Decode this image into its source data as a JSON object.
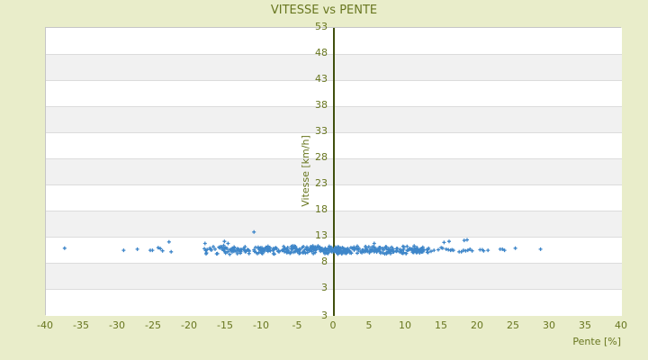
{
  "chart_data": {
    "type": "scatter",
    "title": "VITESSE vs PENTE",
    "xlabel": "Pente [%]",
    "ylabel": "Vitesse [km/h]",
    "xlim": [
      -40,
      40
    ],
    "ylim": [
      -2,
      53
    ],
    "x_ticks": [
      -40,
      -35,
      -30,
      -25,
      -20,
      -15,
      -10,
      -5,
      0,
      5,
      10,
      15,
      20,
      25,
      30,
      35,
      40
    ],
    "y_ticks": [
      53,
      48,
      43,
      38,
      33,
      28,
      23,
      18,
      13,
      8,
      3
    ],
    "y_bottom_edge_label": "3",
    "grid": "horizontal-bands-alternating",
    "legend": "none",
    "marker": "plus",
    "series": [
      {
        "name": "Vitesse",
        "points_explicit": [
          [
            -37.4,
            10.8
          ],
          [
            -29.2,
            10.4
          ],
          [
            -27.3,
            10.6
          ],
          [
            -25.5,
            10.4
          ],
          [
            -25.2,
            10.4
          ],
          [
            -24.4,
            10.9
          ],
          [
            -24.1,
            10.7
          ],
          [
            -23.8,
            10.3
          ],
          [
            -22.9,
            12.0
          ],
          [
            -22.6,
            10.1
          ],
          [
            -17.9,
            11.7
          ],
          [
            -15.2,
            12.1
          ],
          [
            -14.7,
            11.7
          ],
          [
            -11.1,
            13.9
          ],
          [
            5.6,
            11.7
          ],
          [
            13.5,
            10.2
          ],
          [
            13.9,
            10.4
          ],
          [
            14.5,
            10.5
          ],
          [
            14.9,
            10.9
          ],
          [
            15.1,
            10.8
          ],
          [
            15.3,
            11.9
          ],
          [
            15.6,
            10.6
          ],
          [
            15.9,
            10.5
          ],
          [
            16.0,
            12.1
          ],
          [
            16.2,
            10.4
          ],
          [
            16.4,
            10.5
          ],
          [
            16.6,
            10.4
          ],
          [
            17.4,
            10.1
          ],
          [
            17.7,
            10.1
          ],
          [
            18.0,
            10.4
          ],
          [
            18.1,
            12.3
          ],
          [
            18.3,
            10.3
          ],
          [
            18.5,
            12.4
          ],
          [
            18.6,
            10.4
          ],
          [
            18.9,
            10.6
          ],
          [
            19.2,
            10.3
          ],
          [
            20.3,
            10.5
          ],
          [
            20.6,
            10.5
          ],
          [
            20.8,
            10.3
          ],
          [
            21.4,
            10.4
          ],
          [
            23.1,
            10.6
          ],
          [
            23.4,
            10.6
          ],
          [
            23.7,
            10.4
          ],
          [
            25.2,
            10.8
          ],
          [
            28.7,
            10.6
          ]
        ],
        "dense_band": {
          "description": "dense horizontal cloud of plus markers around 10-11 km/h",
          "seed": 42,
          "segments": [
            {
              "x0": -18.0,
              "x1": -14.5,
              "count": 26,
              "v_mean": 10.55,
              "v_spread": 1.0
            },
            {
              "x0": -14.5,
              "x1": -8.0,
              "count": 75,
              "v_mean": 10.5,
              "v_spread": 0.95
            },
            {
              "x0": -8.0,
              "x1": 0.0,
              "count": 115,
              "v_mean": 10.45,
              "v_spread": 0.9
            },
            {
              "x0": 0.0,
              "x1": 8.0,
              "count": 130,
              "v_mean": 10.4,
              "v_spread": 0.9
            },
            {
              "x0": 8.0,
              "x1": 13.3,
              "count": 70,
              "v_mean": 10.5,
              "v_spread": 0.85
            }
          ]
        }
      }
    ],
    "colors": {
      "background": "#e9edca",
      "band_light": "#ffffff",
      "band_dark": "#f1f1f1",
      "gridline": "#dcdcdc",
      "plot_border": "#c6c6c6",
      "text": "#68761f",
      "zero_axis_line": "#41500e",
      "point": "#3e86c9"
    }
  }
}
